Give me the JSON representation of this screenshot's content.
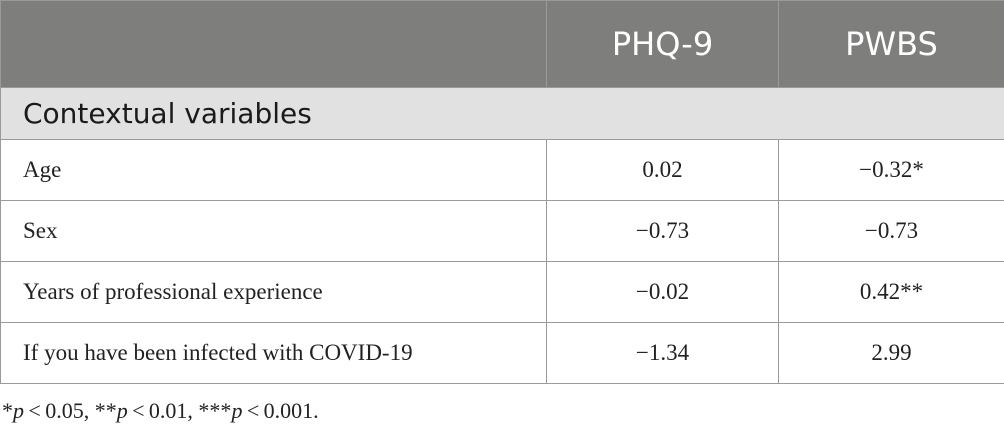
{
  "table": {
    "header": [
      "",
      "PHQ-9",
      "PWBS"
    ],
    "section_label": "Contextual variables",
    "rows": [
      {
        "label": "Age",
        "phq9": "0.02",
        "pwbs": "−0.32*"
      },
      {
        "label": "Sex",
        "phq9": "−0.73",
        "pwbs": "−0.73"
      },
      {
        "label": "Years of professional experience",
        "phq9": "−0.02",
        "pwbs": "0.42**"
      },
      {
        "label": "If you have been infected with COVID-19",
        "phq9": "−1.34",
        "pwbs": "2.99"
      }
    ]
  },
  "footnote": {
    "parts": [
      {
        "text": "*",
        "italic": false
      },
      {
        "text": "p",
        "italic": true
      },
      {
        "text": " < 0.05, **",
        "italic": false
      },
      {
        "text": "p",
        "italic": true
      },
      {
        "text": " < 0.01, ***",
        "italic": false
      },
      {
        "text": "p",
        "italic": true
      },
      {
        "text": " < 0.001.",
        "italic": false
      }
    ]
  },
  "colors": {
    "header_bg": "#7e7e7d",
    "section_bg": "#e1e1e1",
    "border": "#9a9a9a"
  }
}
